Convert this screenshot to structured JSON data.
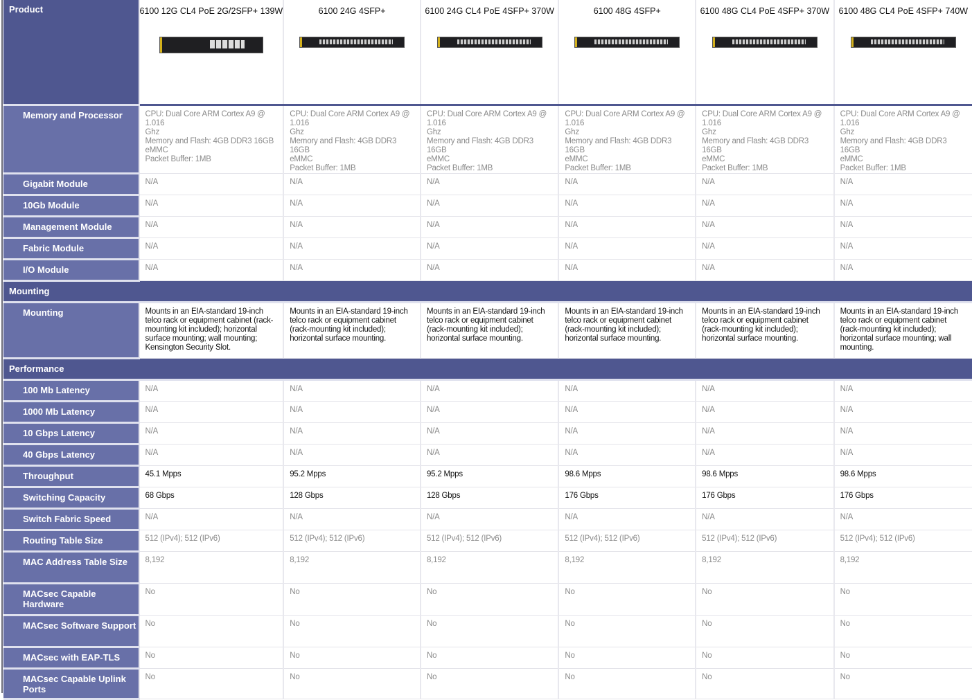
{
  "products": [
    "6100 12G CL4 PoE 2G/2SFP+ 139W",
    "6100 24G 4SFP+",
    "6100 24G CL4 PoE 4SFP+ 370W",
    "6100 48G 4SFP+",
    "6100 48G CL4 PoE 4SFP+ 370W",
    "6100 48G CL4 PoE 4SFP+ 740W"
  ],
  "product_header": "Product",
  "colors": {
    "section_header": "#4f5790",
    "row_label": "#6870a8"
  },
  "rows": [
    {
      "label": "Memory and Processor",
      "values": [
        "CPU: Dual Core ARM Cortex A9 @\n1.016\nGhz\nMemory and Flash: 4GB DDR3 16GB\neMMC\nPacket Buffer: 1MB",
        "CPU: Dual Core ARM Cortex A9 @\n1.016\nGhz\nMemory and Flash: 4GB DDR3 16GB\neMMC\nPacket Buffer: 1MB",
        "CPU: Dual Core ARM Cortex A9 @\n1.016\nGhz\nMemory and Flash: 4GB DDR3 16GB\neMMC\nPacket Buffer: 1MB",
        "CPU: Dual Core ARM Cortex A9 @\n1.016\nGhz\nMemory and Flash: 4GB DDR3 16GB\neMMC\nPacket Buffer: 1MB",
        "CPU: Dual Core ARM Cortex A9 @\n1.016\nGhz\nMemory and Flash: 4GB DDR3 16GB\neMMC\nPacket Buffer: 1MB",
        "CPU: Dual Core ARM Cortex A9 @\n1.016\nGhz\nMemory and Flash: 4GB DDR3 16GB\neMMC\nPacket Buffer: 1MB"
      ]
    },
    {
      "label": "Gigabit Module",
      "values": [
        "N/A",
        "N/A",
        "N/A",
        "N/A",
        "N/A",
        "N/A"
      ]
    },
    {
      "label": "10Gb Module",
      "values": [
        "N/A",
        "N/A",
        "N/A",
        "N/A",
        "N/A",
        "N/A"
      ]
    },
    {
      "label": "Management Module",
      "values": [
        "N/A",
        "N/A",
        "N/A",
        "N/A",
        "N/A",
        "N/A"
      ]
    },
    {
      "label": "Fabric Module",
      "values": [
        "N/A",
        "N/A",
        "N/A",
        "N/A",
        "N/A",
        "N/A"
      ]
    },
    {
      "label": "I/O Module",
      "values": [
        "N/A",
        "N/A",
        "N/A",
        "N/A",
        "N/A",
        "N/A"
      ]
    },
    {
      "section": "Mounting"
    },
    {
      "label": "Mounting",
      "dark": true,
      "values": [
        "Mounts in an EIA-standard 19-inch telco rack or equipment cabinet (rack-mounting kit included); horizontal surface mounting; wall mounting; Kensington Security Slot.",
        "Mounts in an EIA-standard 19-inch telco rack or equipment cabinet (rack-mounting kit included); horizontal surface mounting.",
        "Mounts in an EIA-standard 19-inch telco rack or equipment cabinet (rack-mounting kit included); horizontal surface mounting.",
        "Mounts in an EIA-standard 19-inch telco rack or equipment cabinet (rack-mounting kit included); horizontal surface mounting.",
        "Mounts in an EIA-standard 19-inch telco rack or equipment cabinet (rack-mounting kit included); horizontal surface mounting.",
        "Mounts in an EIA-standard 19-inch telco rack or equipment cabinet (rack-mounting kit included); horizontal surface mounting; wall mounting."
      ]
    },
    {
      "section": "Performance"
    },
    {
      "label": "100 Mb Latency",
      "values": [
        "N/A",
        "N/A",
        "N/A",
        "N/A",
        "N/A",
        "N/A"
      ]
    },
    {
      "label": "1000 Mb Latency",
      "values": [
        "N/A",
        "N/A",
        "N/A",
        "N/A",
        "N/A",
        "N/A"
      ]
    },
    {
      "label": "10 Gbps Latency",
      "values": [
        "N/A",
        "N/A",
        "N/A",
        "N/A",
        "N/A",
        "N/A"
      ]
    },
    {
      "label": "40 Gbps Latency",
      "values": [
        "N/A",
        "N/A",
        "N/A",
        "N/A",
        "N/A",
        "N/A"
      ]
    },
    {
      "label": "Throughput",
      "dark": true,
      "values": [
        "45.1 Mpps",
        "95.2 Mpps",
        "95.2 Mpps",
        "98.6 Mpps",
        "98.6 Mpps",
        "98.6 Mpps"
      ]
    },
    {
      "label": "Switching Capacity",
      "dark": true,
      "values": [
        "68 Gbps",
        "128 Gbps",
        "128 Gbps",
        "176 Gbps",
        "176 Gbps",
        "176 Gbps"
      ]
    },
    {
      "label": "Switch Fabric Speed",
      "values": [
        "N/A",
        "N/A",
        "N/A",
        "N/A",
        "N/A",
        "N/A"
      ]
    },
    {
      "label": "Routing Table Size",
      "values": [
        "512 (IPv4); 512 (IPv6)",
        "512 (IPv4); 512 (IPv6)",
        "512 (IPv4); 512 (IPv6)",
        "512 (IPv4); 512 (IPv6)",
        "512 (IPv4); 512 (IPv6)",
        "512 (IPv4); 512 (IPv6)"
      ]
    },
    {
      "label": "MAC Address Table Size",
      "values": [
        "8,192",
        "8,192",
        "8,192",
        "8,192",
        "8,192",
        "8,192"
      ]
    },
    {
      "label": "MACsec Capable Hardware",
      "values": [
        "No",
        "No",
        "No",
        "No",
        "No",
        "No"
      ]
    },
    {
      "label": "MACsec Software Support",
      "values": [
        "No",
        "No",
        "No",
        "No",
        "No",
        "No"
      ]
    },
    {
      "label": "MACsec with EAP-TLS",
      "values": [
        "No",
        "No",
        "No",
        "No",
        "No",
        "No"
      ]
    },
    {
      "label": "MACsec Capable Uplink Ports",
      "values": [
        "No",
        "No",
        "No",
        "No",
        "No",
        "No"
      ]
    }
  ]
}
